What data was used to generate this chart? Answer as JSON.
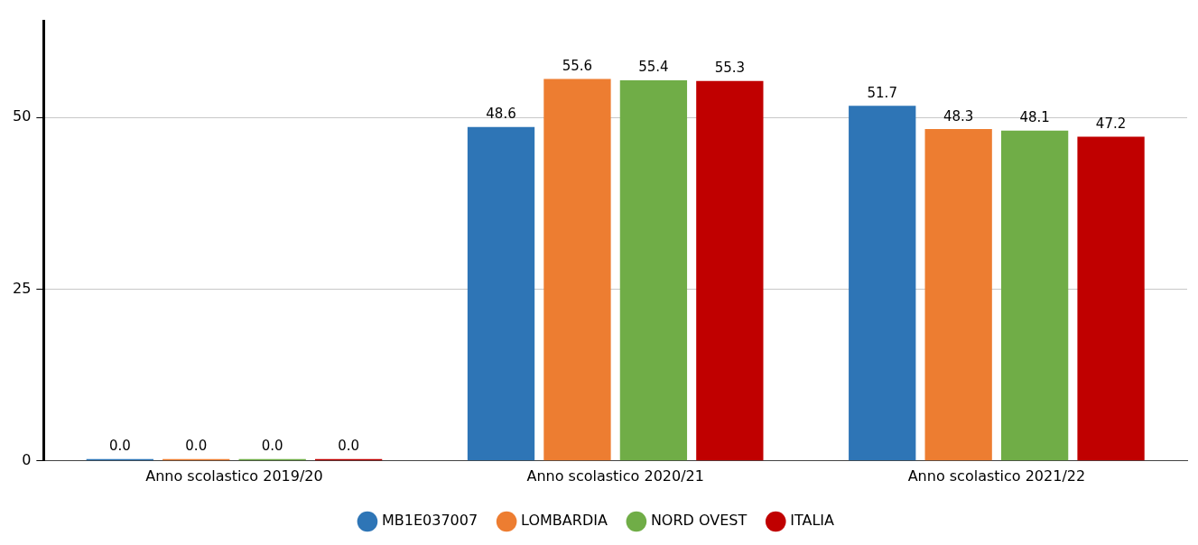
{
  "chart_data": {
    "type": "bar",
    "categories": [
      "Anno scolastico 2019/20",
      "Anno scolastico 2020/21",
      "Anno scolastico 2021/22"
    ],
    "series": [
      {
        "name": "MB1E037007",
        "color": "#2e75b6",
        "values": [
          0,
          48.6,
          51.7
        ],
        "value_labels": [
          "0.0",
          "48.6",
          "51.7"
        ]
      },
      {
        "name": "LOMBARDIA",
        "color": "#ed7d31",
        "values": [
          0,
          55.6,
          48.3
        ],
        "value_labels": [
          "0.0",
          "55.6",
          "48.3"
        ]
      },
      {
        "name": "NORD OVEST",
        "color": "#70ad47",
        "values": [
          0,
          55.4,
          48.1
        ],
        "value_labels": [
          "0.0",
          "55.4",
          "48.1"
        ]
      },
      {
        "name": "ITALIA",
        "color": "#c00000",
        "values": [
          0,
          55.3,
          47.2
        ],
        "value_labels": [
          "0.0",
          "55.3",
          "47.2"
        ]
      }
    ],
    "ylim": [
      0,
      64
    ],
    "yticks": [
      0,
      25,
      50
    ],
    "grid": "y",
    "legend": "bottom"
  }
}
